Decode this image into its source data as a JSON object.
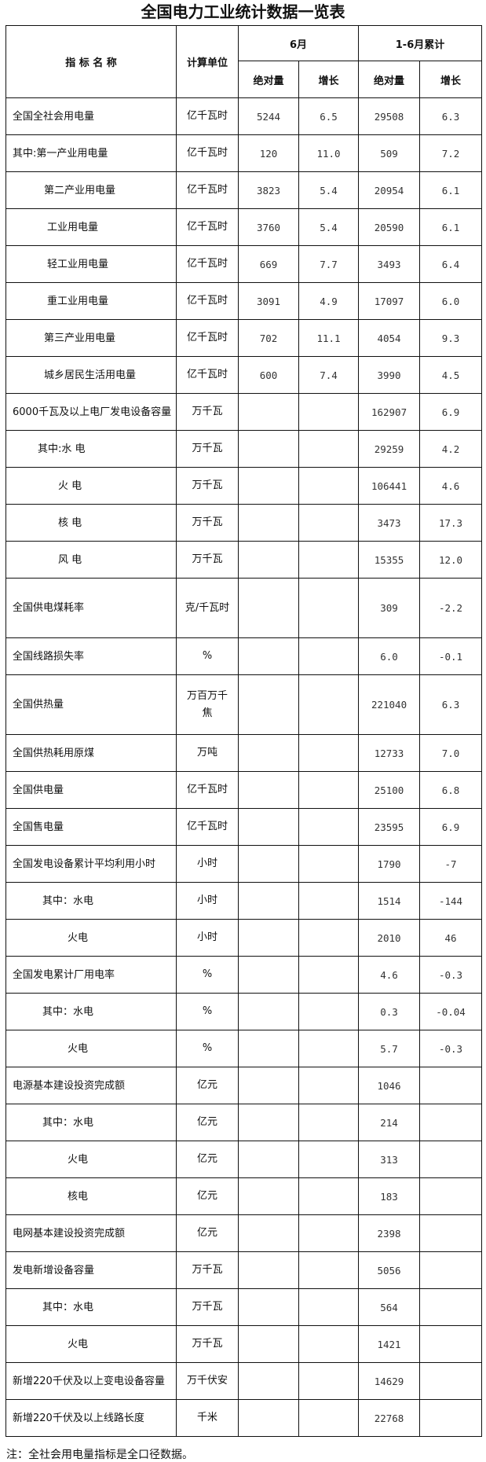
{
  "title": "全国电力工业统计数据一览表",
  "header": {
    "indicator": "指 标 名 称",
    "unit": "计算单位",
    "june": "6月",
    "cumulative": "1-6月累计",
    "absolute": "绝对量",
    "growth": "增长"
  },
  "rows": [
    {
      "name": "全国全社会用电量",
      "unit": "亿千瓦时",
      "june_abs": "5244",
      "june_growth": "6.5",
      "cum_abs": "29508",
      "cum_growth": "6.3"
    },
    {
      "name": "其中:第一产业用电量",
      "unit": "亿千瓦时",
      "june_abs": "120",
      "june_growth": "11.0",
      "cum_abs": "509",
      "cum_growth": "7.2"
    },
    {
      "name": "第二产业用电量",
      "unit": "亿千瓦时",
      "june_abs": "3823",
      "june_growth": "5.4",
      "cum_abs": "20954",
      "cum_growth": "6.1"
    },
    {
      "name": "工业用电量",
      "unit": "亿千瓦时",
      "june_abs": "3760",
      "june_growth": "5.4",
      "cum_abs": "20590",
      "cum_growth": "6.1"
    },
    {
      "name": "轻工业用电量",
      "unit": "亿千瓦时",
      "june_abs": "669",
      "june_growth": "7.7",
      "cum_abs": "3493",
      "cum_growth": "6.4"
    },
    {
      "name": "重工业用电量",
      "unit": "亿千瓦时",
      "june_abs": "3091",
      "june_growth": "4.9",
      "cum_abs": "17097",
      "cum_growth": "6.0"
    },
    {
      "name": "第三产业用电量",
      "unit": "亿千瓦时",
      "june_abs": "702",
      "june_growth": "11.1",
      "cum_abs": "4054",
      "cum_growth": "9.3"
    },
    {
      "name": "城乡居民生活用电量",
      "unit": "亿千瓦时",
      "june_abs": "600",
      "june_growth": "7.4",
      "cum_abs": "3990",
      "cum_growth": "4.5"
    },
    {
      "name": "6000千瓦及以上电厂发电设备容量",
      "unit": "万千瓦",
      "june_abs": "",
      "june_growth": "",
      "cum_abs": "162907",
      "cum_growth": "6.9"
    },
    {
      "name": "其中:水 电",
      "unit": "万千瓦",
      "june_abs": "",
      "june_growth": "",
      "cum_abs": "29259",
      "cum_growth": "4.2"
    },
    {
      "name": "火 电",
      "unit": "万千瓦",
      "june_abs": "",
      "june_growth": "",
      "cum_abs": "106441",
      "cum_growth": "4.6"
    },
    {
      "name": "核 电",
      "unit": "万千瓦",
      "june_abs": "",
      "june_growth": "",
      "cum_abs": "3473",
      "cum_growth": "17.3"
    },
    {
      "name": "风 电",
      "unit": "万千瓦",
      "june_abs": "",
      "june_growth": "",
      "cum_abs": "15355",
      "cum_growth": "12.0"
    },
    {
      "name": "全国供电煤耗率",
      "unit": "克/千瓦时",
      "june_abs": "",
      "june_growth": "",
      "cum_abs": "309",
      "cum_growth": "-2.2"
    },
    {
      "name": "全国线路损失率",
      "unit": "%",
      "june_abs": "",
      "june_growth": "",
      "cum_abs": "6.0",
      "cum_growth": "-0.1"
    },
    {
      "name": "全国供热量",
      "unit": "万百万千焦",
      "june_abs": "",
      "june_growth": "",
      "cum_abs": "221040",
      "cum_growth": "6.3"
    },
    {
      "name": "全国供热耗用原煤",
      "unit": "万吨",
      "june_abs": "",
      "june_growth": "",
      "cum_abs": "12733",
      "cum_growth": "7.0"
    },
    {
      "name": "全国供电量",
      "unit": "亿千瓦时",
      "june_abs": "",
      "june_growth": "",
      "cum_abs": "25100",
      "cum_growth": "6.8"
    },
    {
      "name": "全国售电量",
      "unit": "亿千瓦时",
      "june_abs": "",
      "june_growth": "",
      "cum_abs": "23595",
      "cum_growth": "6.9"
    },
    {
      "name": "全国发电设备累计平均利用小时",
      "unit": "小时",
      "june_abs": "",
      "june_growth": "",
      "cum_abs": "1790",
      "cum_growth": "-7"
    },
    {
      "name": "其中：水电",
      "unit": "小时",
      "june_abs": "",
      "june_growth": "",
      "cum_abs": "1514",
      "cum_growth": "-144"
    },
    {
      "name": "火电",
      "unit": "小时",
      "june_abs": "",
      "june_growth": "",
      "cum_abs": "2010",
      "cum_growth": "46"
    },
    {
      "name": "全国发电累计厂用电率",
      "unit": "%",
      "june_abs": "",
      "june_growth": "",
      "cum_abs": "4.6",
      "cum_growth": "-0.3"
    },
    {
      "name": "其中：水电",
      "unit": "%",
      "june_abs": "",
      "june_growth": "",
      "cum_abs": "0.3",
      "cum_growth": "-0.04"
    },
    {
      "name": "火电",
      "unit": "%",
      "june_abs": "",
      "june_growth": "",
      "cum_abs": "5.7",
      "cum_growth": "-0.3"
    },
    {
      "name": "电源基本建设投资完成额",
      "unit": "亿元",
      "june_abs": "",
      "june_growth": "",
      "cum_abs": "1046",
      "cum_growth": ""
    },
    {
      "name": "其中：水电",
      "unit": "亿元",
      "june_abs": "",
      "june_growth": "",
      "cum_abs": "214",
      "cum_growth": ""
    },
    {
      "name": "火电",
      "unit": "亿元",
      "june_abs": "",
      "june_growth": "",
      "cum_abs": "313",
      "cum_growth": ""
    },
    {
      "name": "核电",
      "unit": "亿元",
      "june_abs": "",
      "june_growth": "",
      "cum_abs": "183",
      "cum_growth": ""
    },
    {
      "name": "电网基本建设投资完成额",
      "unit": "亿元",
      "june_abs": "",
      "june_growth": "",
      "cum_abs": "2398",
      "cum_growth": ""
    },
    {
      "name": "发电新增设备容量",
      "unit": "万千瓦",
      "june_abs": "",
      "june_growth": "",
      "cum_abs": "5056",
      "cum_growth": ""
    },
    {
      "name": "其中：水电",
      "unit": "万千瓦",
      "june_abs": "",
      "june_growth": "",
      "cum_abs": "564",
      "cum_growth": ""
    },
    {
      "name": "火电",
      "unit": "万千瓦",
      "june_abs": "",
      "june_growth": "",
      "cum_abs": "1421",
      "cum_growth": ""
    },
    {
      "name": "新增220千伏及以上变电设备容量",
      "unit": "万千伏安",
      "june_abs": "",
      "june_growth": "",
      "cum_abs": "14629",
      "cum_growth": ""
    },
    {
      "name": "新增220千伏及以上线路长度",
      "unit": "千米",
      "june_abs": "",
      "june_growth": "",
      "cum_abs": "22768",
      "cum_growth": ""
    }
  ],
  "note": "注：全社会用电量指标是全口径数据。"
}
